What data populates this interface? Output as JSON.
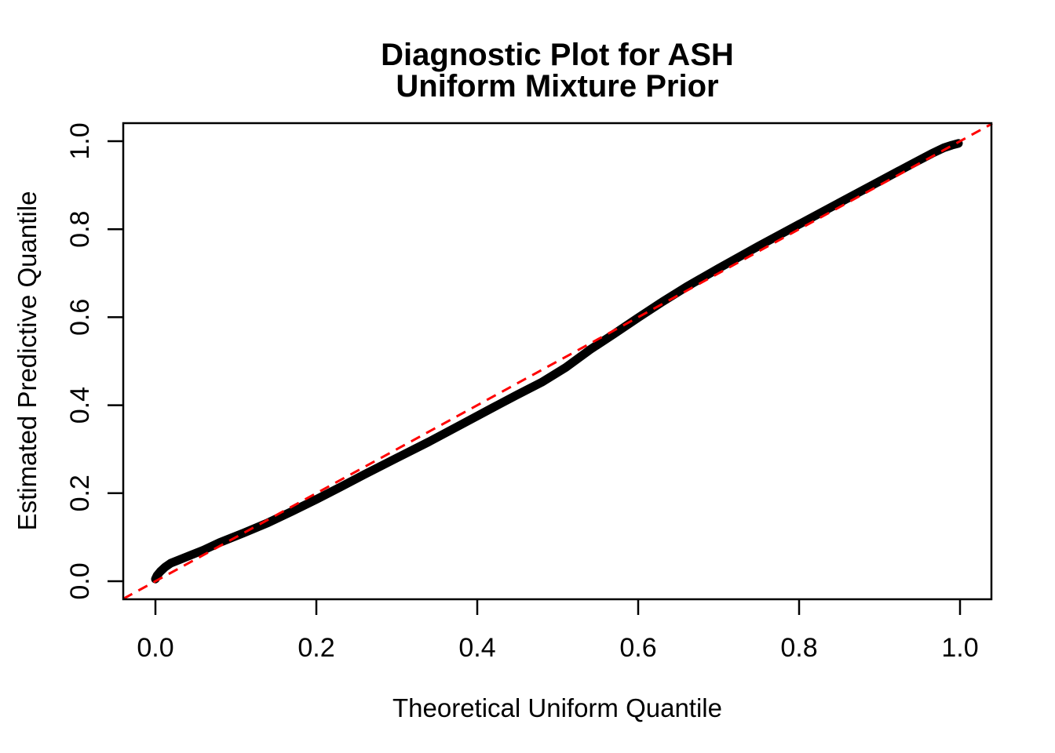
{
  "title": {
    "line1": "Diagnostic Plot for ASH",
    "line2": "Uniform Mixture Prior"
  },
  "axes": {
    "x": {
      "label": "Theoretical Uniform Quantile",
      "tick_values": [
        0.0,
        0.2,
        0.4,
        0.6,
        0.8,
        1.0
      ],
      "tick_labels": [
        "0.0",
        "0.2",
        "0.4",
        "0.6",
        "0.8",
        "1.0"
      ]
    },
    "y": {
      "label": "Estimated Predictive Quantile",
      "tick_values": [
        0.0,
        0.2,
        0.4,
        0.6,
        0.8,
        1.0
      ],
      "tick_labels": [
        "0.0",
        "0.2",
        "0.4",
        "0.6",
        "0.8",
        "1.0"
      ]
    }
  },
  "colors": {
    "background": "#ffffff",
    "axis": "#000000",
    "curve": "#000000",
    "reference_line": "#ff0000"
  },
  "chart_data": {
    "type": "line",
    "title": "Diagnostic Plot for ASH\nUniform Mixture Prior",
    "xlabel": "Theoretical Uniform Quantile",
    "ylabel": "Estimated Predictive Quantile",
    "xlim": [
      -0.04,
      1.04
    ],
    "ylim": [
      -0.04,
      1.04
    ],
    "grid": false,
    "legend": "none",
    "series": [
      {
        "name": "estimated-predictive-quantile-curve",
        "style": "solid",
        "color": "#000000",
        "line_width": 11,
        "points": [
          [
            0.0,
            0.005
          ],
          [
            0.002,
            0.013
          ],
          [
            0.006,
            0.022
          ],
          [
            0.012,
            0.032
          ],
          [
            0.019,
            0.041
          ],
          [
            0.03,
            0.049
          ],
          [
            0.045,
            0.06
          ],
          [
            0.06,
            0.071
          ],
          [
            0.08,
            0.088
          ],
          [
            0.11,
            0.11
          ],
          [
            0.14,
            0.133
          ],
          [
            0.17,
            0.159
          ],
          [
            0.2,
            0.186
          ],
          [
            0.23,
            0.214
          ],
          [
            0.26,
            0.243
          ],
          [
            0.3,
            0.28
          ],
          [
            0.34,
            0.317
          ],
          [
            0.38,
            0.356
          ],
          [
            0.42,
            0.395
          ],
          [
            0.45,
            0.424
          ],
          [
            0.48,
            0.452
          ],
          [
            0.51,
            0.486
          ],
          [
            0.54,
            0.526
          ],
          [
            0.57,
            0.562
          ],
          [
            0.6,
            0.599
          ],
          [
            0.63,
            0.635
          ],
          [
            0.66,
            0.669
          ],
          [
            0.7,
            0.711
          ],
          [
            0.75,
            0.762
          ],
          [
            0.8,
            0.811
          ],
          [
            0.85,
            0.86
          ],
          [
            0.9,
            0.909
          ],
          [
            0.94,
            0.948
          ],
          [
            0.965,
            0.972
          ],
          [
            0.98,
            0.985
          ],
          [
            0.99,
            0.991
          ],
          [
            0.998,
            0.995
          ]
        ]
      },
      {
        "name": "reference-diagonal",
        "style": "dashed",
        "color": "#ff0000",
        "line_width": 3,
        "points": [
          [
            -0.04,
            -0.04
          ],
          [
            1.04,
            1.04
          ]
        ]
      }
    ]
  }
}
